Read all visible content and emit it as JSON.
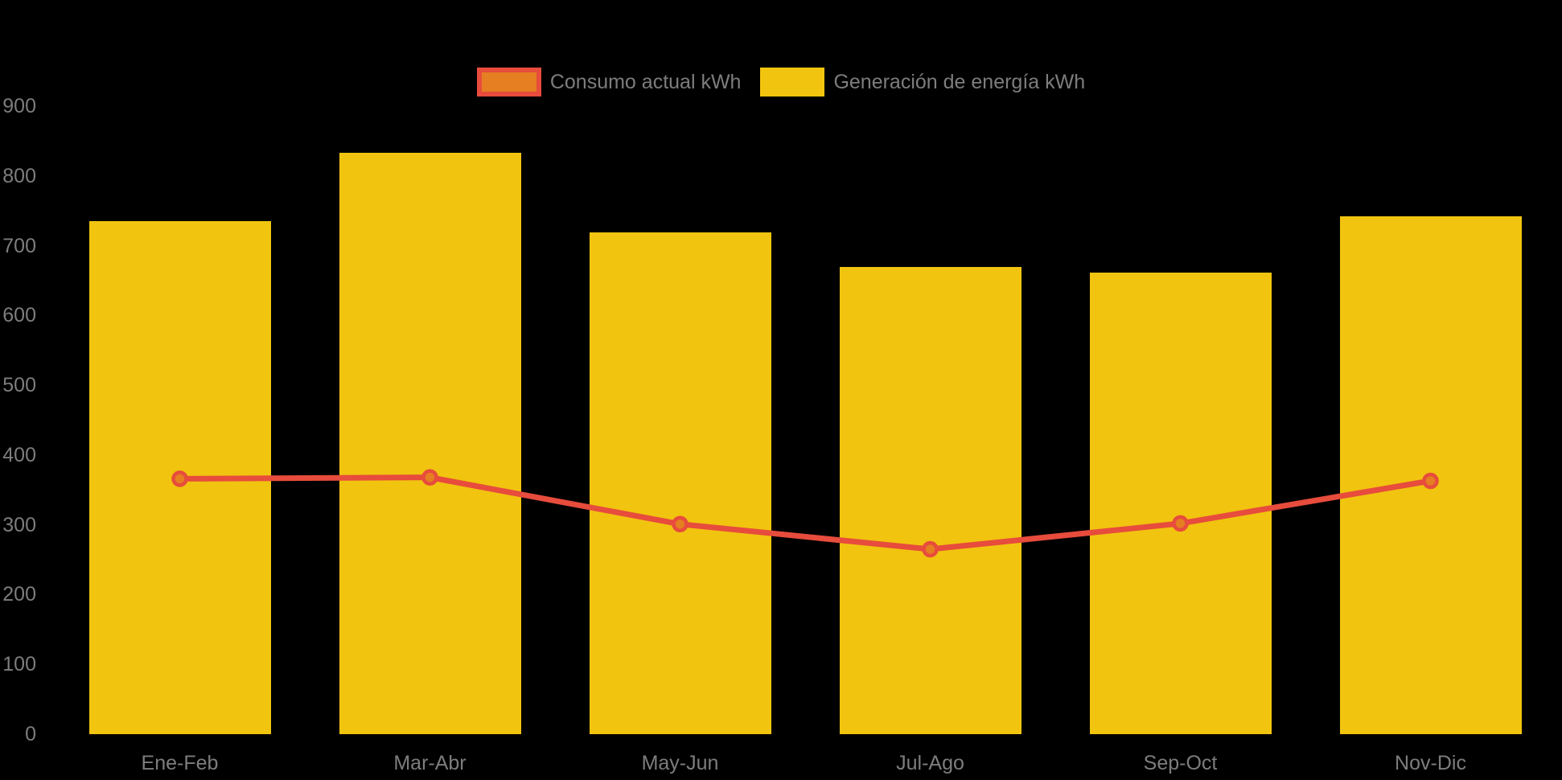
{
  "chart_data": {
    "type": "bar",
    "subtype": "bar-line-combo",
    "title": "",
    "categories": [
      "Ene-Feb",
      "Mar-Abr",
      "May-Jun",
      "Jul-Ago",
      "Sep-Oct",
      "Nov-Dic"
    ],
    "series": [
      {
        "name": "Consumo actual kWh",
        "type": "line",
        "values": [
          366,
          368,
          301,
          265,
          302,
          363
        ],
        "line_color": "#e74c3c",
        "point_fill": "#e67e22",
        "point_stroke": "#e74c3c"
      },
      {
        "name": "Generación de energía kWh",
        "type": "bar",
        "values": [
          735,
          833,
          719,
          670,
          661,
          742
        ],
        "bar_color": "#f1c40f"
      }
    ],
    "xlabel": "",
    "ylabel": "",
    "ylim": [
      0,
      900
    ],
    "y_ticks": [
      0,
      100,
      200,
      300,
      400,
      500,
      600,
      700,
      800,
      900
    ],
    "grid": false,
    "legend_position": "top-center",
    "background_color": "#000000",
    "text_color": "#7d7d7d"
  },
  "legend": {
    "items": [
      {
        "label": "Consumo actual kWh"
      },
      {
        "label": "Generación de energía kWh"
      }
    ]
  }
}
